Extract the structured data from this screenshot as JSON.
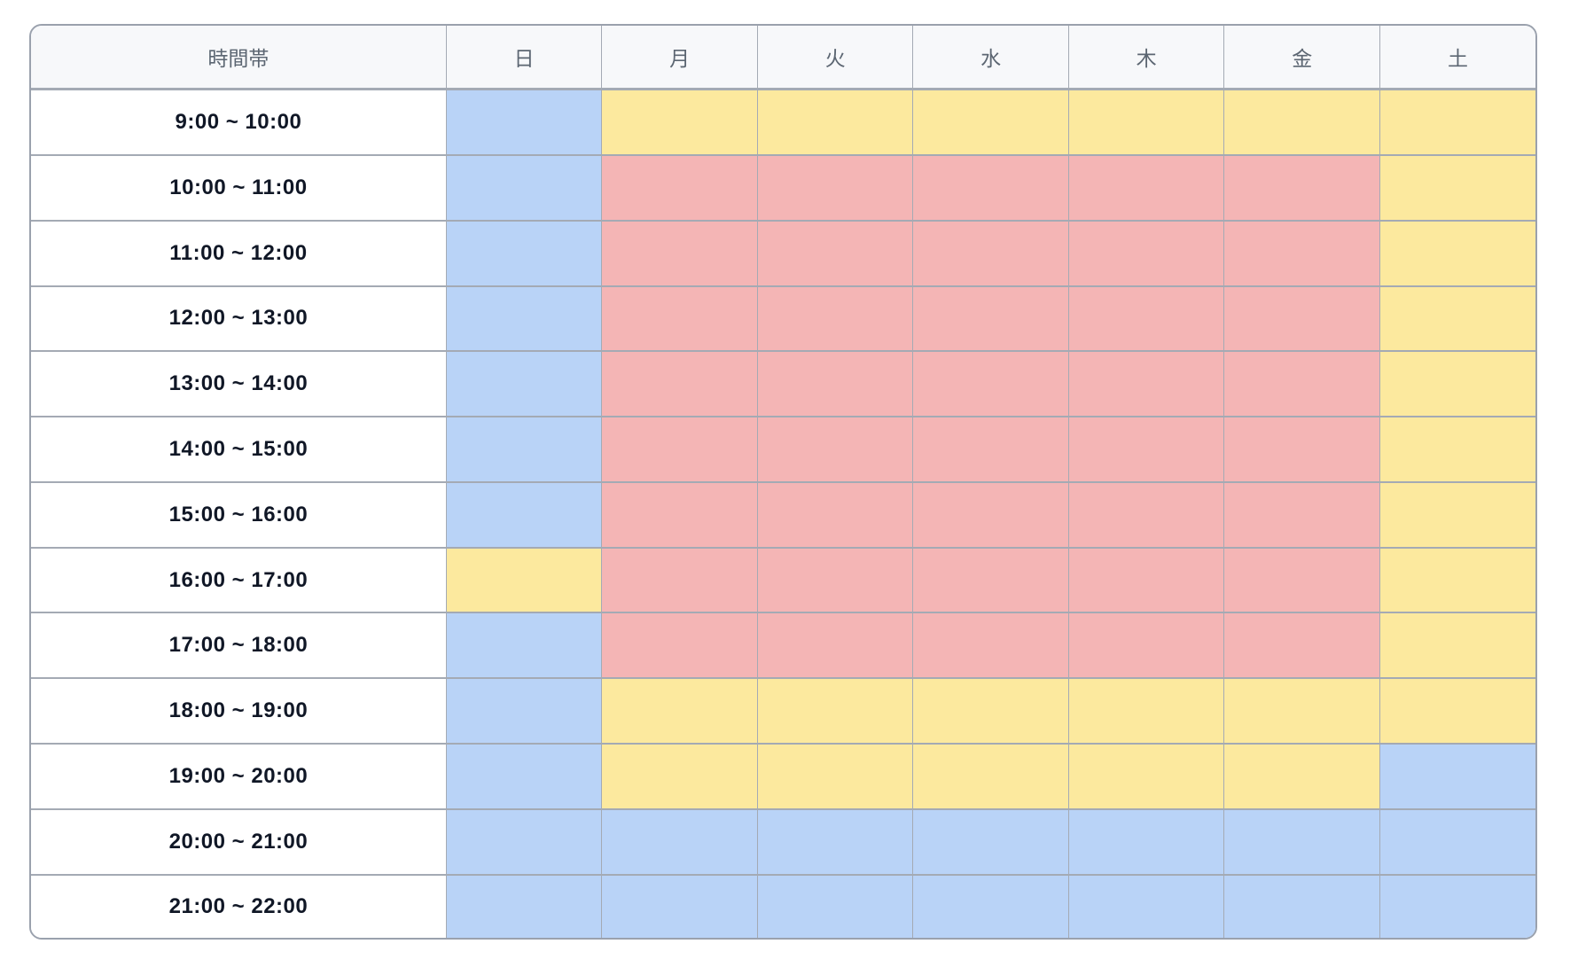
{
  "table": {
    "header": {
      "time_label": "時間帯",
      "days": [
        "日",
        "月",
        "火",
        "水",
        "木",
        "金",
        "土"
      ]
    },
    "cell_colors": {
      "blue": "#b9d3f7",
      "yellow": "#fce99e",
      "red": "#f4b5b5"
    },
    "rows": [
      {
        "time": "9:00 ~ 10:00",
        "cells": [
          "blue",
          "yellow",
          "yellow",
          "yellow",
          "yellow",
          "yellow",
          "yellow"
        ]
      },
      {
        "time": "10:00 ~ 11:00",
        "cells": [
          "blue",
          "red",
          "red",
          "red",
          "red",
          "red",
          "yellow"
        ]
      },
      {
        "time": "11:00 ~ 12:00",
        "cells": [
          "blue",
          "red",
          "red",
          "red",
          "red",
          "red",
          "yellow"
        ]
      },
      {
        "time": "12:00 ~ 13:00",
        "cells": [
          "blue",
          "red",
          "red",
          "red",
          "red",
          "red",
          "yellow"
        ]
      },
      {
        "time": "13:00 ~ 14:00",
        "cells": [
          "blue",
          "red",
          "red",
          "red",
          "red",
          "red",
          "yellow"
        ]
      },
      {
        "time": "14:00 ~ 15:00",
        "cells": [
          "blue",
          "red",
          "red",
          "red",
          "red",
          "red",
          "yellow"
        ]
      },
      {
        "time": "15:00 ~ 16:00",
        "cells": [
          "blue",
          "red",
          "red",
          "red",
          "red",
          "red",
          "yellow"
        ]
      },
      {
        "time": "16:00 ~ 17:00",
        "cells": [
          "yellow",
          "red",
          "red",
          "red",
          "red",
          "red",
          "yellow"
        ]
      },
      {
        "time": "17:00 ~ 18:00",
        "cells": [
          "blue",
          "red",
          "red",
          "red",
          "red",
          "red",
          "yellow"
        ]
      },
      {
        "time": "18:00 ~ 19:00",
        "cells": [
          "blue",
          "yellow",
          "yellow",
          "yellow",
          "yellow",
          "yellow",
          "yellow"
        ]
      },
      {
        "time": "19:00 ~ 20:00",
        "cells": [
          "blue",
          "yellow",
          "yellow",
          "yellow",
          "yellow",
          "yellow",
          "blue"
        ]
      },
      {
        "time": "20:00 ~ 21:00",
        "cells": [
          "blue",
          "blue",
          "blue",
          "blue",
          "blue",
          "blue",
          "blue"
        ]
      },
      {
        "time": "21:00 ~ 22:00",
        "cells": [
          "blue",
          "blue",
          "blue",
          "blue",
          "blue",
          "blue",
          "blue"
        ]
      }
    ],
    "day_keys": [
      "sun",
      "mon",
      "tue",
      "wed",
      "thu",
      "fri",
      "sat"
    ]
  }
}
